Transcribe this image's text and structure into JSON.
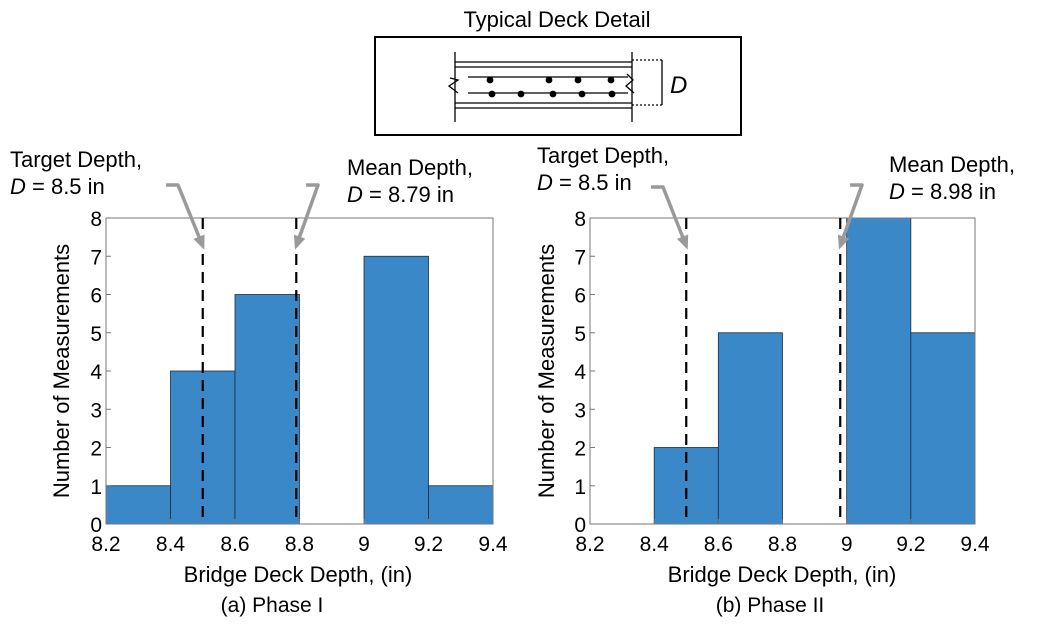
{
  "detail": {
    "title": "Typical Deck Detail",
    "dimension_label": "D"
  },
  "chart_data": [
    {
      "type": "bar",
      "caption": "(a) Phase I",
      "xlabel": "Bridge Deck Depth, (in)",
      "ylabel": "Number of Measurements",
      "xlim": [
        8.2,
        9.4
      ],
      "ylim": [
        0,
        8
      ],
      "xticks": [
        "8.2",
        "8.4",
        "8.6",
        "8.8",
        "9",
        "9.2",
        "9.4"
      ],
      "yticks": [
        "0",
        "1",
        "2",
        "3",
        "4",
        "5",
        "6",
        "7",
        "8"
      ],
      "bins": [
        {
          "from": 8.2,
          "to": 8.4,
          "count": 1
        },
        {
          "from": 8.4,
          "to": 8.6,
          "count": 4
        },
        {
          "from": 8.6,
          "to": 8.8,
          "count": 6
        },
        {
          "from": 8.8,
          "to": 9.0,
          "count": 0
        },
        {
          "from": 9.0,
          "to": 9.2,
          "count": 7
        },
        {
          "from": 9.2,
          "to": 9.4,
          "count": 1
        }
      ],
      "reference_lines": [
        {
          "x": 8.5,
          "label_line1": "Target Depth,",
          "label_var": "D",
          "label_rest": " = 8.5 in"
        },
        {
          "x": 8.79,
          "label_line1": "Mean Depth,",
          "label_var": "D",
          "label_rest": " = 8.79 in"
        }
      ],
      "bar_color": "#3a88c8",
      "grid": false
    },
    {
      "type": "bar",
      "caption": "(b) Phase II",
      "xlabel": "Bridge Deck Depth, (in)",
      "ylabel": "Number of Measurements",
      "xlim": [
        8.2,
        9.4
      ],
      "ylim": [
        0,
        8
      ],
      "xticks": [
        "8.2",
        "8.4",
        "8.6",
        "8.8",
        "9",
        "9.2",
        "9.4"
      ],
      "yticks": [
        "0",
        "1",
        "2",
        "3",
        "4",
        "5",
        "6",
        "7",
        "8"
      ],
      "bins": [
        {
          "from": 8.2,
          "to": 8.4,
          "count": 0
        },
        {
          "from": 8.4,
          "to": 8.6,
          "count": 2
        },
        {
          "from": 8.6,
          "to": 8.8,
          "count": 5
        },
        {
          "from": 8.8,
          "to": 9.0,
          "count": 0
        },
        {
          "from": 9.0,
          "to": 9.2,
          "count": 8
        },
        {
          "from": 9.2,
          "to": 9.4,
          "count": 5
        }
      ],
      "reference_lines": [
        {
          "x": 8.5,
          "label_line1": "Target Depth,",
          "label_var": "D",
          "label_rest": " = 8.5 in"
        },
        {
          "x": 8.98,
          "label_line1": "Mean Depth,",
          "label_var": "D",
          "label_rest": " = 8.98 in"
        }
      ],
      "bar_color": "#3a88c8",
      "grid": false
    }
  ]
}
